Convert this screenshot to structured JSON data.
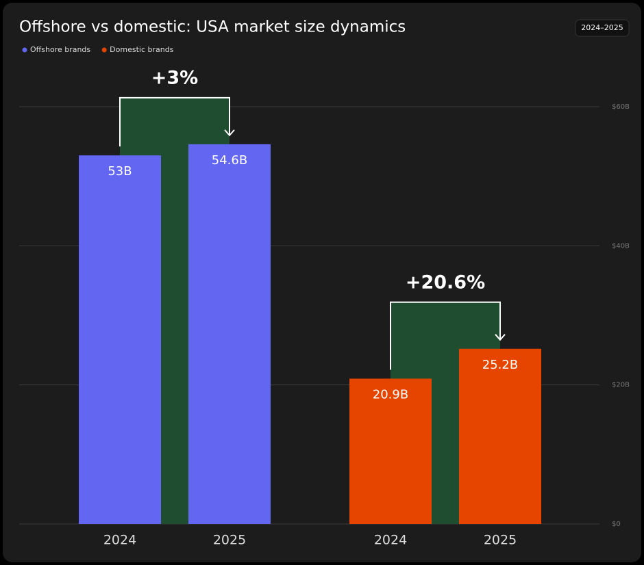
{
  "chart_data": {
    "type": "bar",
    "title": "Offshore vs domestic: USA market size dynamics",
    "period": "2024–2025",
    "series": [
      {
        "name": "Offshore brands",
        "color": "#6366f1",
        "categories": [
          "2024",
          "2025"
        ],
        "values": [
          53,
          54.6
        ],
        "value_labels": [
          "53B",
          "54.6B"
        ],
        "change": "+3%"
      },
      {
        "name": "Domestic brands",
        "color": "#e64500",
        "categories": [
          "2024",
          "2025"
        ],
        "values": [
          20.9,
          25.2
        ],
        "value_labels": [
          "20.9B",
          "25.2B"
        ],
        "change": "+20.6%"
      }
    ],
    "ylim": [
      0,
      60
    ],
    "yticks": [
      {
        "value": 0,
        "label": "$0"
      },
      {
        "value": 20,
        "label": "$20B"
      },
      {
        "value": 40,
        "label": "$40B"
      },
      {
        "value": 60,
        "label": "$60B"
      }
    ],
    "grid": true,
    "axis_side": "right"
  }
}
